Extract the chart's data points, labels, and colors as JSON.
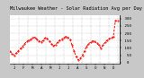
{
  "title": "Milwaukee Weather - Solar Radiation Avg per Day W/m2/minute",
  "line_color": "#ff0000",
  "bg_color": "#c8c8c8",
  "plot_bg_color": "#ffffff",
  "grid_color": "#999999",
  "border_color": "#000000",
  "ylim": [
    -10,
    320
  ],
  "xlim": [
    0,
    53
  ],
  "ylabel_fontsize": 3.0,
  "title_fontsize": 3.8,
  "xtick_fontsize": 3.0,
  "x_values": [
    0,
    1,
    2,
    3,
    4,
    5,
    6,
    7,
    8,
    9,
    10,
    11,
    12,
    13,
    14,
    15,
    16,
    17,
    18,
    19,
    20,
    21,
    22,
    23,
    24,
    25,
    26,
    27,
    28,
    29,
    30,
    31,
    32,
    33,
    34,
    35,
    36,
    37,
    38,
    39,
    40,
    41,
    42,
    43,
    44,
    45,
    46,
    47,
    48,
    49,
    50,
    51,
    52
  ],
  "y_values": [
    75,
    60,
    50,
    65,
    80,
    95,
    108,
    128,
    142,
    152,
    158,
    168,
    172,
    158,
    148,
    138,
    152,
    168,
    162,
    148,
    128,
    112,
    122,
    138,
    152,
    158,
    168,
    178,
    172,
    158,
    118,
    78,
    38,
    18,
    28,
    48,
    78,
    108,
    128,
    138,
    148,
    142,
    132,
    118,
    98,
    118,
    138,
    152,
    162,
    168,
    175,
    285,
    285
  ],
  "vgrid_positions": [
    4.33,
    8.66,
    13.0,
    17.33,
    21.66,
    26.0,
    30.33,
    34.66,
    39.0,
    43.33,
    47.66,
    52.0
  ],
  "ytick_vals": [
    0,
    50,
    100,
    150,
    200,
    250,
    300
  ],
  "ytick_labels": [
    "  0",
    "  50",
    " 100",
    " 150",
    " 200",
    " 250",
    " 300"
  ],
  "xtick_labels": [
    "J",
    "F",
    "M",
    "A",
    "M",
    "J",
    "J",
    "A",
    "S",
    "O",
    "N",
    "D",
    ""
  ],
  "xtick_positions": [
    2.16,
    6.5,
    10.83,
    15.16,
    19.5,
    23.83,
    28.16,
    32.5,
    36.83,
    41.16,
    45.5,
    49.83,
    53
  ]
}
